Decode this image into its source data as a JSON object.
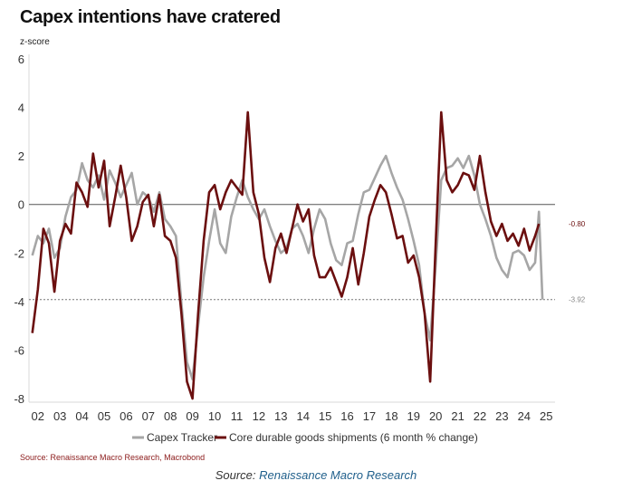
{
  "chart_data": {
    "type": "line",
    "title": "Capex intentions have cratered",
    "ylabel": "z-score",
    "xlabel": "",
    "ylim": [
      -8,
      6
    ],
    "yticks": [
      6,
      4,
      2,
      0,
      -2,
      -4,
      -6,
      -8
    ],
    "xlim": [
      2001.6,
      2025.4
    ],
    "xtick_labels": [
      "02",
      "03",
      "04",
      "05",
      "06",
      "07",
      "08",
      "09",
      "10",
      "11",
      "12",
      "13",
      "14",
      "15",
      "16",
      "17",
      "18",
      "19",
      "20",
      "21",
      "22",
      "23",
      "24",
      "25"
    ],
    "reference_lines": [
      {
        "value": 0,
        "style": "solid"
      },
      {
        "value": -3.92,
        "style": "dashed"
      }
    ],
    "end_labels": [
      "-0.80",
      "-3.92"
    ],
    "legend_position": "bottom",
    "series": [
      {
        "name": "Capex Tracker",
        "color": "#a6a6a6",
        "x": [
          2001.75,
          2002.0,
          2002.25,
          2002.5,
          2002.75,
          2003.0,
          2003.25,
          2003.5,
          2003.75,
          2004.0,
          2004.25,
          2004.5,
          2004.75,
          2005.0,
          2005.25,
          2005.5,
          2005.75,
          2006.0,
          2006.25,
          2006.5,
          2006.75,
          2007.0,
          2007.25,
          2007.5,
          2007.75,
          2008.0,
          2008.25,
          2008.5,
          2008.75,
          2009.0,
          2009.25,
          2009.5,
          2009.75,
          2010.0,
          2010.25,
          2010.5,
          2010.75,
          2011.0,
          2011.25,
          2011.5,
          2011.75,
          2012.0,
          2012.25,
          2012.5,
          2012.75,
          2013.0,
          2013.25,
          2013.5,
          2013.75,
          2014.0,
          2014.25,
          2014.5,
          2014.75,
          2015.0,
          2015.25,
          2015.5,
          2015.75,
          2016.0,
          2016.25,
          2016.5,
          2016.75,
          2017.0,
          2017.25,
          2017.5,
          2017.75,
          2018.0,
          2018.25,
          2018.5,
          2018.75,
          2019.0,
          2019.25,
          2019.5,
          2019.75,
          2020.0,
          2020.25,
          2020.5,
          2020.75,
          2021.0,
          2021.25,
          2021.5,
          2021.75,
          2022.0,
          2022.25,
          2022.5,
          2022.75,
          2023.0,
          2023.25,
          2023.5,
          2023.75,
          2024.0,
          2024.25,
          2024.5,
          2024.67,
          2024.83
        ],
        "values": [
          -2.1,
          -1.3,
          -1.6,
          -1.0,
          -2.2,
          -1.8,
          -0.5,
          0.3,
          0.6,
          1.7,
          1.0,
          0.7,
          1.2,
          0.2,
          1.4,
          0.9,
          0.3,
          0.8,
          1.3,
          0.0,
          0.5,
          0.3,
          -0.3,
          0.5,
          -0.6,
          -0.9,
          -1.3,
          -4.1,
          -6.5,
          -7.2,
          -5.0,
          -3.0,
          -1.5,
          -0.2,
          -1.6,
          -2.0,
          -0.5,
          0.3,
          1.0,
          0.3,
          -0.2,
          -0.6,
          -0.2,
          -0.9,
          -1.5,
          -2.0,
          -1.8,
          -1.0,
          -0.8,
          -1.3,
          -2.0,
          -1.0,
          -0.2,
          -0.6,
          -1.6,
          -2.3,
          -2.5,
          -1.6,
          -1.5,
          -0.4,
          0.5,
          0.6,
          1.1,
          1.6,
          2.0,
          1.3,
          0.7,
          0.2,
          -0.6,
          -1.5,
          -2.5,
          -4.5,
          -5.6,
          -2.5,
          1.0,
          1.5,
          1.6,
          1.9,
          1.5,
          2.0,
          1.2,
          0.0,
          -0.6,
          -1.3,
          -2.2,
          -2.7,
          -3.0,
          -2.0,
          -1.9,
          -2.1,
          -2.7,
          -2.4,
          -0.3,
          -3.92
        ]
      },
      {
        "name": "Core durable goods shipments (6 month % change)",
        "color": "#6b0f0f",
        "x": [
          2001.75,
          2002.0,
          2002.25,
          2002.5,
          2002.75,
          2003.0,
          2003.25,
          2003.5,
          2003.75,
          2004.0,
          2004.25,
          2004.5,
          2004.75,
          2005.0,
          2005.25,
          2005.5,
          2005.75,
          2006.0,
          2006.25,
          2006.5,
          2006.75,
          2007.0,
          2007.25,
          2007.5,
          2007.75,
          2008.0,
          2008.25,
          2008.5,
          2008.75,
          2009.0,
          2009.25,
          2009.5,
          2009.75,
          2010.0,
          2010.25,
          2010.5,
          2010.75,
          2011.0,
          2011.25,
          2011.5,
          2011.75,
          2012.0,
          2012.25,
          2012.5,
          2012.75,
          2013.0,
          2013.25,
          2013.5,
          2013.75,
          2014.0,
          2014.25,
          2014.5,
          2014.75,
          2015.0,
          2015.25,
          2015.5,
          2015.75,
          2016.0,
          2016.25,
          2016.5,
          2016.75,
          2017.0,
          2017.25,
          2017.5,
          2017.75,
          2018.0,
          2018.25,
          2018.5,
          2018.75,
          2019.0,
          2019.25,
          2019.5,
          2019.75,
          2020.0,
          2020.25,
          2020.5,
          2020.75,
          2021.0,
          2021.25,
          2021.5,
          2021.75,
          2022.0,
          2022.25,
          2022.5,
          2022.75,
          2023.0,
          2023.25,
          2023.5,
          2023.75,
          2024.0,
          2024.25,
          2024.5,
          2024.67
        ],
        "values": [
          -5.3,
          -3.5,
          -1.0,
          -1.6,
          -3.6,
          -1.5,
          -0.8,
          -1.2,
          0.9,
          0.5,
          -0.1,
          2.1,
          0.7,
          1.8,
          -0.9,
          0.3,
          1.6,
          0.3,
          -1.5,
          -0.9,
          0.1,
          0.4,
          -0.9,
          0.4,
          -1.3,
          -1.5,
          -2.2,
          -4.5,
          -7.3,
          -8.0,
          -4.5,
          -1.5,
          0.5,
          0.8,
          -0.2,
          0.5,
          1.0,
          0.7,
          0.4,
          3.8,
          0.5,
          -0.4,
          -2.2,
          -3.2,
          -1.8,
          -1.2,
          -2.0,
          -1.0,
          0.0,
          -0.7,
          -0.2,
          -2.1,
          -3.0,
          -3.0,
          -2.6,
          -3.2,
          -3.8,
          -3.0,
          -1.8,
          -3.3,
          -2.0,
          -0.5,
          0.2,
          0.8,
          0.5,
          -0.4,
          -1.4,
          -1.3,
          -2.4,
          -2.1,
          -3.0,
          -4.5,
          -7.3,
          -1.6,
          3.8,
          1.0,
          0.5,
          0.8,
          1.3,
          1.2,
          0.6,
          2.0,
          0.5,
          -0.7,
          -1.3,
          -0.8,
          -1.5,
          -1.2,
          -1.7,
          -1.0,
          -1.9,
          -1.3,
          -0.8
        ]
      }
    ]
  },
  "caption": {
    "source_note": "Source: Renaissance Macro Research, Macrobond",
    "prefix": "Source: ",
    "link_text": "Renaissance Macro Research"
  }
}
